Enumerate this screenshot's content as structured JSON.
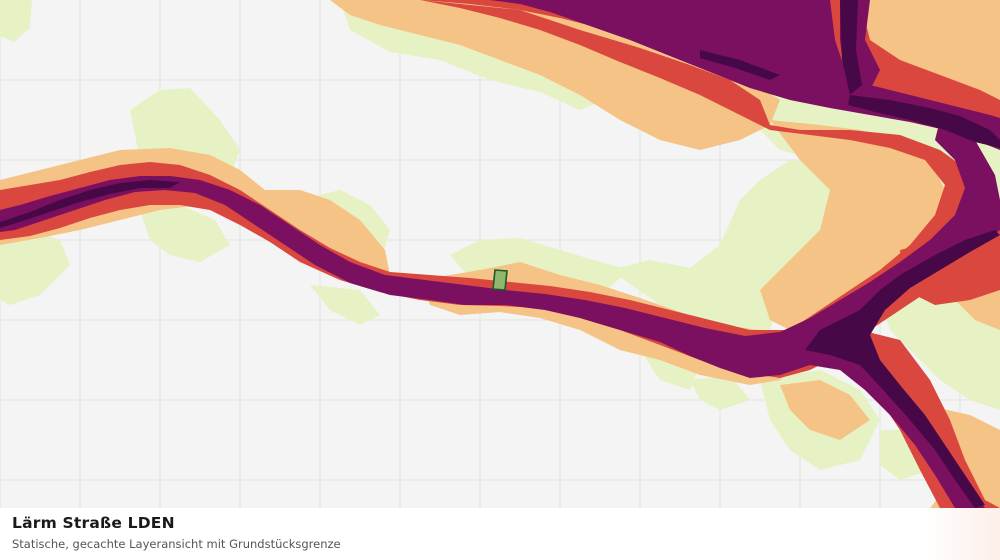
{
  "layer": {
    "title": "Lärm Straße LDEN",
    "subtitle": "Statische, gecachte Layeransicht mit Grundstücksgrenze"
  },
  "legend_colors": {
    "background": "#f3f4f3",
    "grid": "#e2e4e2",
    "zone_lowest": "#e6f2c4",
    "zone_low": "#f5c385",
    "zone_mid": "#d9473f",
    "zone_high": "#7b1060",
    "zone_highest": "#470848",
    "parcel_fill": "#8fb86e",
    "parcel_outline": "#1e5a2a"
  }
}
